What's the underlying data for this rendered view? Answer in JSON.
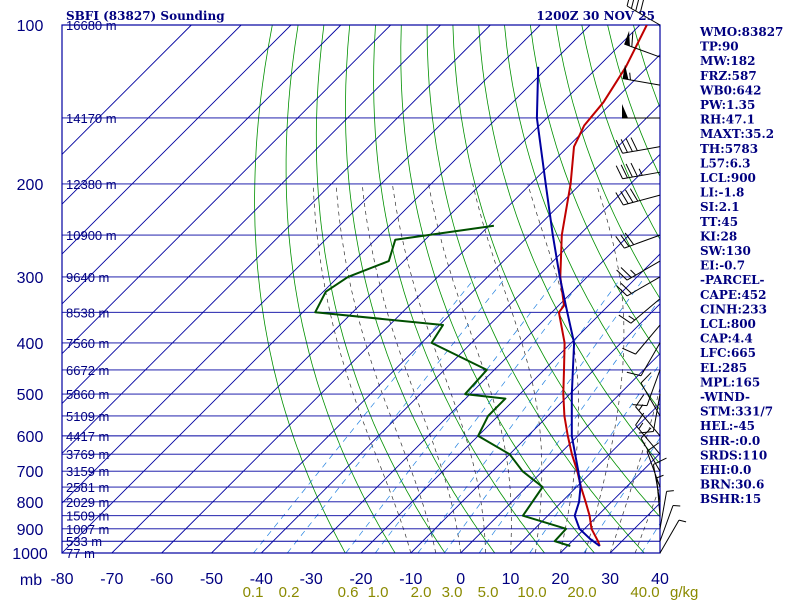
{
  "header": {
    "station": "SBFI (83827) Sounding",
    "time": "1200Z 30 NOV 25"
  },
  "chart_data": {
    "type": "line",
    "title": "SBFI (83827) Sounding",
    "diagram": "skew-T log-P",
    "xlim": [
      -80,
      40
    ],
    "ylim": [
      1000,
      100
    ],
    "y_scale": "log",
    "pressure_ticks": [
      100,
      200,
      300,
      400,
      500,
      600,
      700,
      800,
      900,
      1000
    ],
    "y_unit_label": "mb",
    "temperature_ticks": [
      -80,
      -70,
      -60,
      -50,
      -40,
      -30,
      -20,
      -10,
      0,
      10,
      20,
      30,
      40
    ],
    "mixing_ratio_labels": [
      "0.1",
      "0.2",
      "0.6",
      "1.0",
      "2.0",
      "3.0",
      "5.0",
      "10.0",
      "20.0",
      "40.0"
    ],
    "mixing_ratio_unit": "g/kg",
    "height_levels": [
      {
        "p": 100,
        "label": "16680 m"
      },
      {
        "p": 150,
        "label": "14170 m"
      },
      {
        "p": 200,
        "label": "12380 m"
      },
      {
        "p": 250,
        "label": "10900 m"
      },
      {
        "p": 300,
        "label": "9640 m"
      },
      {
        "p": 350,
        "label": "8538 m"
      },
      {
        "p": 400,
        "label": "7560 m"
      },
      {
        "p": 450,
        "label": "6672 m"
      },
      {
        "p": 500,
        "label": "5860 m"
      },
      {
        "p": 550,
        "label": "5109 m"
      },
      {
        "p": 600,
        "label": "4417 m"
      },
      {
        "p": 650,
        "label": "3769 m"
      },
      {
        "p": 700,
        "label": "3159 m"
      },
      {
        "p": 750,
        "label": "2581 m"
      },
      {
        "p": 800,
        "label": "2029 m"
      },
      {
        "p": 850,
        "label": "1509 m"
      },
      {
        "p": 900,
        "label": "1007 m"
      },
      {
        "p": 950,
        "label": "533 m"
      },
      {
        "p": 1000,
        "label": "77 m"
      }
    ],
    "series": [
      {
        "key": "temperature",
        "color": "#c00000",
        "points": [
          {
            "p": 970,
            "t": 26.5
          },
          {
            "p": 950,
            "t": 25.2
          },
          {
            "p": 900,
            "t": 21.4
          },
          {
            "p": 850,
            "t": 18.4
          },
          {
            "p": 800,
            "t": 14.8
          },
          {
            "p": 750,
            "t": 10.9
          },
          {
            "p": 700,
            "t": 7.0
          },
          {
            "p": 650,
            "t": 2.5
          },
          {
            "p": 600,
            "t": -2.0
          },
          {
            "p": 550,
            "t": -6.7
          },
          {
            "p": 500,
            "t": -11.3
          },
          {
            "p": 450,
            "t": -16.0
          },
          {
            "p": 400,
            "t": -21.3
          },
          {
            "p": 350,
            "t": -28.6
          },
          {
            "p": 340,
            "t": -28.9
          },
          {
            "p": 300,
            "t": -35.4
          },
          {
            "p": 250,
            "t": -43.5
          },
          {
            "p": 200,
            "t": -52.0
          },
          {
            "p": 170,
            "t": -58.8
          },
          {
            "p": 155,
            "t": -61.0
          },
          {
            "p": 140,
            "t": -61.8
          },
          {
            "p": 120,
            "t": -64.4
          },
          {
            "p": 100,
            "t": -68.6
          }
        ]
      },
      {
        "key": "dewpoint",
        "color": "#005000",
        "points": [
          {
            "p": 970,
            "t": 20.6
          },
          {
            "p": 950,
            "t": 16.5
          },
          {
            "p": 900,
            "t": 16.3
          },
          {
            "p": 850,
            "t": 5.0
          },
          {
            "p": 750,
            "t": 3.2
          },
          {
            "p": 700,
            "t": -4.0
          },
          {
            "p": 650,
            "t": -10.0
          },
          {
            "p": 600,
            "t": -20.0
          },
          {
            "p": 550,
            "t": -22.0
          },
          {
            "p": 510,
            "t": -22.0
          },
          {
            "p": 500,
            "t": -31.0
          },
          {
            "p": 450,
            "t": -31.5
          },
          {
            "p": 400,
            "t": -48.0
          },
          {
            "p": 370,
            "t": -49.3
          },
          {
            "p": 350,
            "t": -77.5
          },
          {
            "p": 320,
            "t": -79.5
          },
          {
            "p": 300,
            "t": -78.0
          },
          {
            "p": 280,
            "t": -73.0
          },
          {
            "p": 255,
            "t": -76.0
          },
          {
            "p": 240,
            "t": -59.0
          }
        ]
      },
      {
        "key": "parcel",
        "color": "#0000a0",
        "points": [
          {
            "p": 970,
            "t": 26.5
          },
          {
            "p": 940,
            "t": 23.1
          },
          {
            "p": 900,
            "t": 19.0
          },
          {
            "p": 850,
            "t": 15.4
          },
          {
            "p": 800,
            "t": 13.5
          },
          {
            "p": 750,
            "t": 10.8
          },
          {
            "p": 700,
            "t": 7.2
          },
          {
            "p": 600,
            "t": -1.2
          },
          {
            "p": 500,
            "t": -9.6
          },
          {
            "p": 400,
            "t": -19.4
          },
          {
            "p": 350,
            "t": -26.9
          },
          {
            "p": 300,
            "t": -35.5
          },
          {
            "p": 250,
            "t": -45.3
          },
          {
            "p": 200,
            "t": -57.0
          },
          {
            "p": 150,
            "t": -72.0
          },
          {
            "p": 120,
            "t": -82.0
          }
        ]
      }
    ],
    "wind_barbs": [
      {
        "p": 100,
        "dir": 300,
        "spd": 40
      },
      {
        "p": 115,
        "dir": 290,
        "spd": 60
      },
      {
        "p": 130,
        "dir": 280,
        "spd": 55
      },
      {
        "p": 150,
        "dir": 270,
        "spd": 50
      },
      {
        "p": 170,
        "dir": 260,
        "spd": 40
      },
      {
        "p": 190,
        "dir": 260,
        "spd": 45
      },
      {
        "p": 210,
        "dir": 255,
        "spd": 40
      },
      {
        "p": 250,
        "dir": 250,
        "spd": 30
      },
      {
        "p": 280,
        "dir": 240,
        "spd": 25
      },
      {
        "p": 300,
        "dir": 240,
        "spd": 20
      },
      {
        "p": 330,
        "dir": 230,
        "spd": 15
      },
      {
        "p": 370,
        "dir": 220,
        "spd": 10
      },
      {
        "p": 400,
        "dir": 210,
        "spd": 10
      },
      {
        "p": 450,
        "dir": 200,
        "spd": 10
      },
      {
        "p": 500,
        "dir": 190,
        "spd": 10
      },
      {
        "p": 550,
        "dir": 330,
        "spd": 10
      },
      {
        "p": 600,
        "dir": 320,
        "spd": 15
      },
      {
        "p": 650,
        "dir": 320,
        "spd": 15
      },
      {
        "p": 700,
        "dir": 330,
        "spd": 10
      },
      {
        "p": 750,
        "dir": 340,
        "spd": 10
      },
      {
        "p": 800,
        "dir": 350,
        "spd": 10
      },
      {
        "p": 850,
        "dir": 355,
        "spd": 5
      },
      {
        "p": 900,
        "dir": 10,
        "spd": 5
      },
      {
        "p": 950,
        "dir": 20,
        "spd": 5
      },
      {
        "p": 1000,
        "dir": 30,
        "spd": 5
      }
    ],
    "grid": true
  },
  "indices": [
    "WMO:83827",
    "TP:90",
    "MW:182",
    "FRZ:587",
    "WB0:642",
    "PW:1.35",
    "RH:47.1",
    "MAXT:35.2",
    "TH:5783",
    "L57:6.3",
    "LCL:900",
    "LI:-1.8",
    "SI:2.1",
    "TT:45",
    "KI:28",
    "SW:130",
    "EI:-0.7",
    "-PARCEL-",
    "CAPE:452",
    "CINH:233",
    "LCL:800",
    "CAP:4.4",
    "LFC:665",
    "EL:285",
    "MPL:165",
    "-WIND-",
    "STM:331/7",
    "HEL:-45",
    "SHR-:0.0",
    "SRDS:110",
    "EHI:0.0",
    "BRN:30.6",
    "BSHR:15"
  ],
  "colors": {
    "isobar": "#0000a0",
    "isotherm": "#0000a0",
    "dry_adiabat": "#009000",
    "moist_adiabat": "#303030",
    "mixing_ratio": "#2080e0"
  }
}
